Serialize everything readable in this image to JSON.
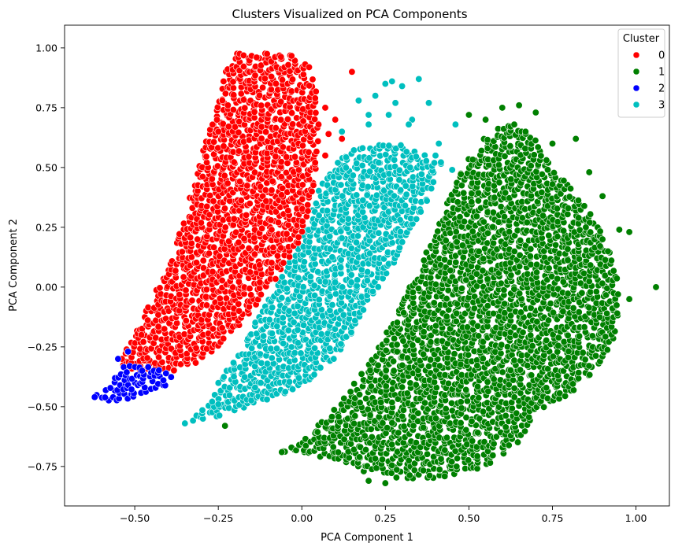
{
  "chart_data": {
    "type": "scatter",
    "title": "Clusters Visualized on PCA Components",
    "xlabel": "PCA Component 1",
    "ylabel": "PCA Component 2",
    "xlim": [
      -0.71,
      1.1
    ],
    "ylim": [
      -0.915,
      1.095
    ],
    "xticks": [
      -0.5,
      -0.25,
      0.0,
      0.25,
      0.5,
      0.75,
      1.0
    ],
    "xtick_labels": [
      "−0.50",
      "−0.25",
      "0.00",
      "0.25",
      "0.50",
      "0.75",
      "1.00"
    ],
    "yticks": [
      -0.75,
      -0.5,
      -0.25,
      0.0,
      0.25,
      0.5,
      0.75,
      1.0
    ],
    "ytick_labels": [
      "−0.75",
      "−0.50",
      "−0.25",
      "0.00",
      "0.25",
      "0.50",
      "0.75",
      "1.00"
    ],
    "grid": false,
    "legend": {
      "title": "Cluster",
      "placement": "top-right"
    },
    "series": [
      {
        "name": "0",
        "color": "#ff0000",
        "region": [
          [
            -0.55,
            -0.32
          ],
          [
            -0.5,
            -0.2
          ],
          [
            -0.45,
            -0.05
          ],
          [
            -0.4,
            0.1
          ],
          [
            -0.35,
            0.3
          ],
          [
            -0.3,
            0.55
          ],
          [
            -0.25,
            0.78
          ],
          [
            -0.22,
            0.95
          ],
          [
            -0.18,
            0.99
          ],
          [
            -0.1,
            0.99
          ],
          [
            -0.03,
            0.98
          ],
          [
            0.02,
            0.93
          ],
          [
            0.05,
            0.8
          ],
          [
            0.05,
            0.6
          ],
          [
            0.04,
            0.45
          ],
          [
            0.02,
            0.3
          ],
          [
            -0.02,
            0.15
          ],
          [
            -0.07,
            0.05
          ],
          [
            -0.12,
            -0.05
          ],
          [
            -0.18,
            -0.15
          ],
          [
            -0.25,
            -0.25
          ],
          [
            -0.32,
            -0.32
          ],
          [
            -0.4,
            -0.36
          ],
          [
            -0.48,
            -0.37
          ]
        ],
        "outliers": [
          [
            0.15,
            0.9
          ],
          [
            0.07,
            0.75
          ],
          [
            0.05,
            0.68
          ],
          [
            0.08,
            0.64
          ],
          [
            0.12,
            0.62
          ],
          [
            0.07,
            0.55
          ],
          [
            0.04,
            0.52
          ],
          [
            0.03,
            0.4
          ],
          [
            -0.48,
            -0.2
          ],
          [
            -0.25,
            0.65
          ],
          [
            0.1,
            0.7
          ]
        ]
      },
      {
        "name": "1",
        "color": "#008000",
        "region": [
          [
            -0.06,
            -0.69
          ],
          [
            0.02,
            -0.62
          ],
          [
            0.1,
            -0.5
          ],
          [
            0.2,
            -0.32
          ],
          [
            0.28,
            -0.12
          ],
          [
            0.35,
            0.08
          ],
          [
            0.42,
            0.3
          ],
          [
            0.48,
            0.5
          ],
          [
            0.55,
            0.63
          ],
          [
            0.62,
            0.7
          ],
          [
            0.68,
            0.66
          ],
          [
            0.75,
            0.5
          ],
          [
            0.8,
            0.42
          ],
          [
            0.87,
            0.3
          ],
          [
            0.92,
            0.18
          ],
          [
            0.95,
            0.0
          ],
          [
            0.95,
            -0.18
          ],
          [
            0.9,
            -0.32
          ],
          [
            0.8,
            -0.45
          ],
          [
            0.7,
            -0.52
          ],
          [
            0.65,
            -0.65
          ],
          [
            0.55,
            -0.75
          ],
          [
            0.42,
            -0.8
          ],
          [
            0.28,
            -0.8
          ],
          [
            0.2,
            -0.78
          ],
          [
            0.1,
            -0.72
          ]
        ],
        "outliers": [
          [
            0.2,
            -0.81
          ],
          [
            0.25,
            -0.82
          ],
          [
            -0.06,
            -0.69
          ],
          [
            -0.23,
            -0.58
          ],
          [
            0.75,
            0.6
          ],
          [
            0.82,
            0.62
          ],
          [
            0.95,
            0.24
          ],
          [
            0.98,
            0.23
          ],
          [
            1.06,
            0.0
          ],
          [
            0.98,
            -0.05
          ],
          [
            0.9,
            0.38
          ],
          [
            0.7,
            0.73
          ],
          [
            0.65,
            0.76
          ],
          [
            0.6,
            0.75
          ],
          [
            0.75,
            0.43
          ],
          [
            0.86,
            0.48
          ],
          [
            0.9,
            0.2
          ],
          [
            0.85,
            0.25
          ],
          [
            0.55,
            0.7
          ],
          [
            0.5,
            0.72
          ]
        ]
      },
      {
        "name": "2",
        "color": "#0000ff",
        "region": [
          [
            -0.63,
            -0.46
          ],
          [
            -0.58,
            -0.42
          ],
          [
            -0.55,
            -0.33
          ],
          [
            -0.5,
            -0.32
          ],
          [
            -0.44,
            -0.33
          ],
          [
            -0.4,
            -0.36
          ],
          [
            -0.38,
            -0.39
          ],
          [
            -0.42,
            -0.42
          ],
          [
            -0.48,
            -0.45
          ],
          [
            -0.53,
            -0.47
          ],
          [
            -0.58,
            -0.48
          ]
        ],
        "outliers": [
          [
            -0.62,
            -0.46
          ],
          [
            -0.55,
            -0.3
          ],
          [
            -0.52,
            -0.27
          ]
        ]
      },
      {
        "name": "3",
        "color": "#00bfbf",
        "region": [
          [
            -0.34,
            -0.57
          ],
          [
            -0.25,
            -0.54
          ],
          [
            -0.15,
            -0.5
          ],
          [
            -0.05,
            -0.45
          ],
          [
            0.02,
            -0.4
          ],
          [
            0.1,
            -0.3
          ],
          [
            0.17,
            -0.16
          ],
          [
            0.25,
            0.05
          ],
          [
            0.3,
            0.15
          ],
          [
            0.35,
            0.3
          ],
          [
            0.4,
            0.42
          ],
          [
            0.42,
            0.52
          ],
          [
            0.36,
            0.56
          ],
          [
            0.3,
            0.6
          ],
          [
            0.22,
            0.6
          ],
          [
            0.15,
            0.58
          ],
          [
            0.1,
            0.52
          ],
          [
            0.06,
            0.45
          ],
          [
            0.04,
            0.35
          ],
          [
            0.0,
            0.2
          ],
          [
            -0.05,
            0.07
          ],
          [
            -0.1,
            -0.05
          ],
          [
            -0.15,
            -0.17
          ],
          [
            -0.2,
            -0.3
          ],
          [
            -0.26,
            -0.42
          ],
          [
            -0.31,
            -0.52
          ]
        ],
        "outliers": [
          [
            0.1,
            0.7
          ],
          [
            0.12,
            0.65
          ],
          [
            0.17,
            0.78
          ],
          [
            0.2,
            0.72
          ],
          [
            0.22,
            0.8
          ],
          [
            0.25,
            0.85
          ],
          [
            0.27,
            0.86
          ],
          [
            0.3,
            0.84
          ],
          [
            0.28,
            0.77
          ],
          [
            0.35,
            0.87
          ],
          [
            0.38,
            0.77
          ],
          [
            0.33,
            0.7
          ],
          [
            0.26,
            0.72
          ],
          [
            0.4,
            0.55
          ],
          [
            0.45,
            0.49
          ],
          [
            0.46,
            0.68
          ],
          [
            -0.25,
            -0.49
          ],
          [
            -0.35,
            -0.57
          ],
          [
            -0.14,
            -0.42
          ],
          [
            0.2,
            0.68
          ],
          [
            0.32,
            0.68
          ],
          [
            0.41,
            0.6
          ]
        ]
      }
    ]
  }
}
